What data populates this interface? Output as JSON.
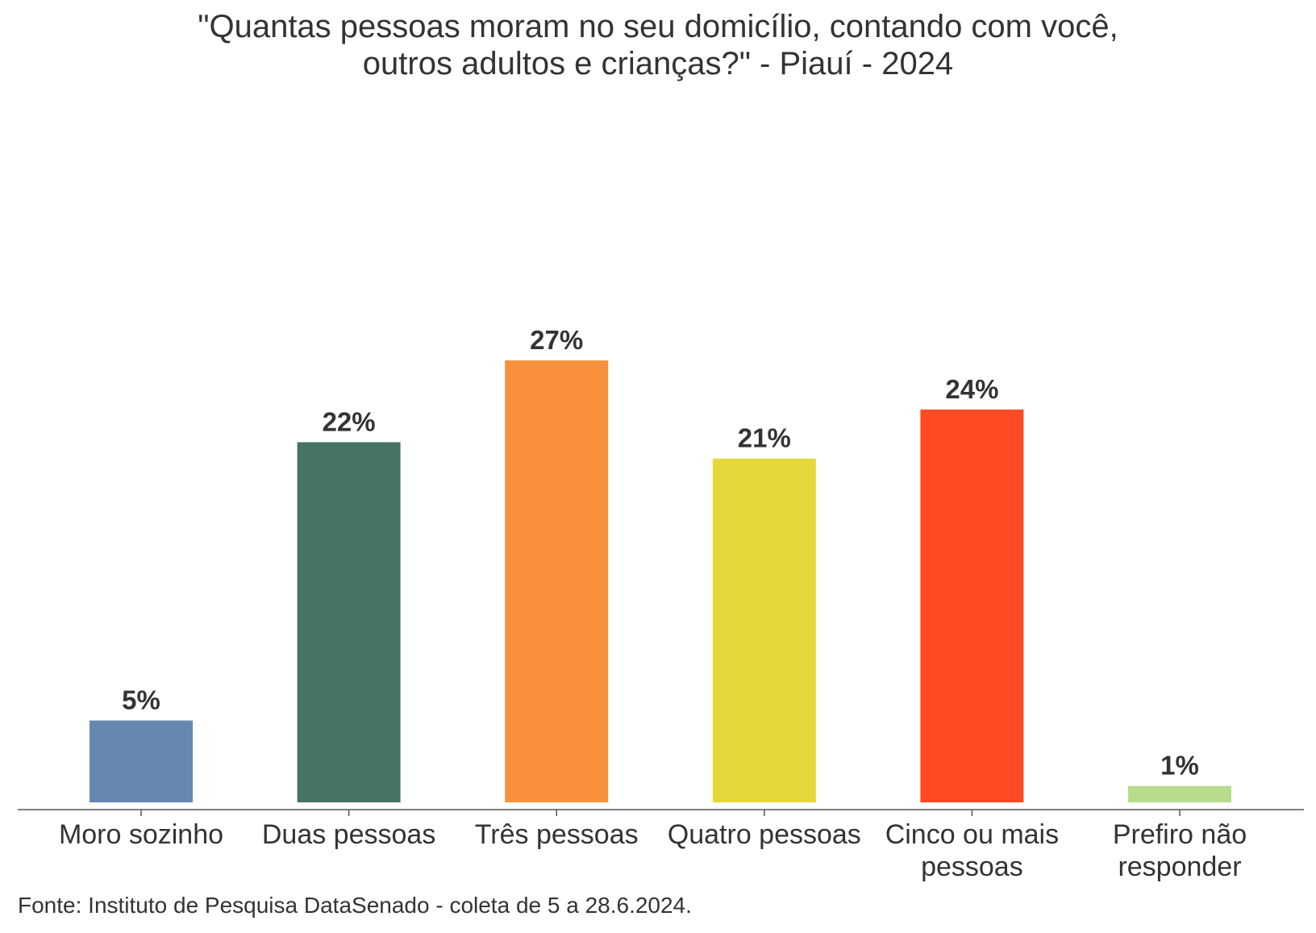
{
  "chart_data": {
    "type": "bar",
    "title_lines": [
      "\"Quantas pessoas moram no seu domicílio, contando com você,",
      "outros adultos e crianças?\" - Piauí - 2024"
    ],
    "categories": [
      [
        "Moro sozinho"
      ],
      [
        "Duas pessoas"
      ],
      [
        "Três pessoas"
      ],
      [
        "Quatro pessoas"
      ],
      [
        "Cinco ou mais",
        "pessoas"
      ],
      [
        "Prefiro não",
        "responder"
      ]
    ],
    "values": [
      5,
      22,
      27,
      21,
      24,
      1
    ],
    "value_labels": [
      "5%",
      "22%",
      "27%",
      "21%",
      "24%",
      "1%"
    ],
    "colors": [
      "#6688AE",
      "#467462",
      "#F9913C",
      "#E5D739",
      "#FF4A23",
      "#B8DB8C"
    ],
    "ylim": [
      0,
      28
    ],
    "xlabel": "",
    "ylabel": "",
    "grid": false,
    "legend": "none"
  },
  "source": "Fonte: Instituto de Pesquisa DataSenado - coleta de 5 a 28.6.2024."
}
